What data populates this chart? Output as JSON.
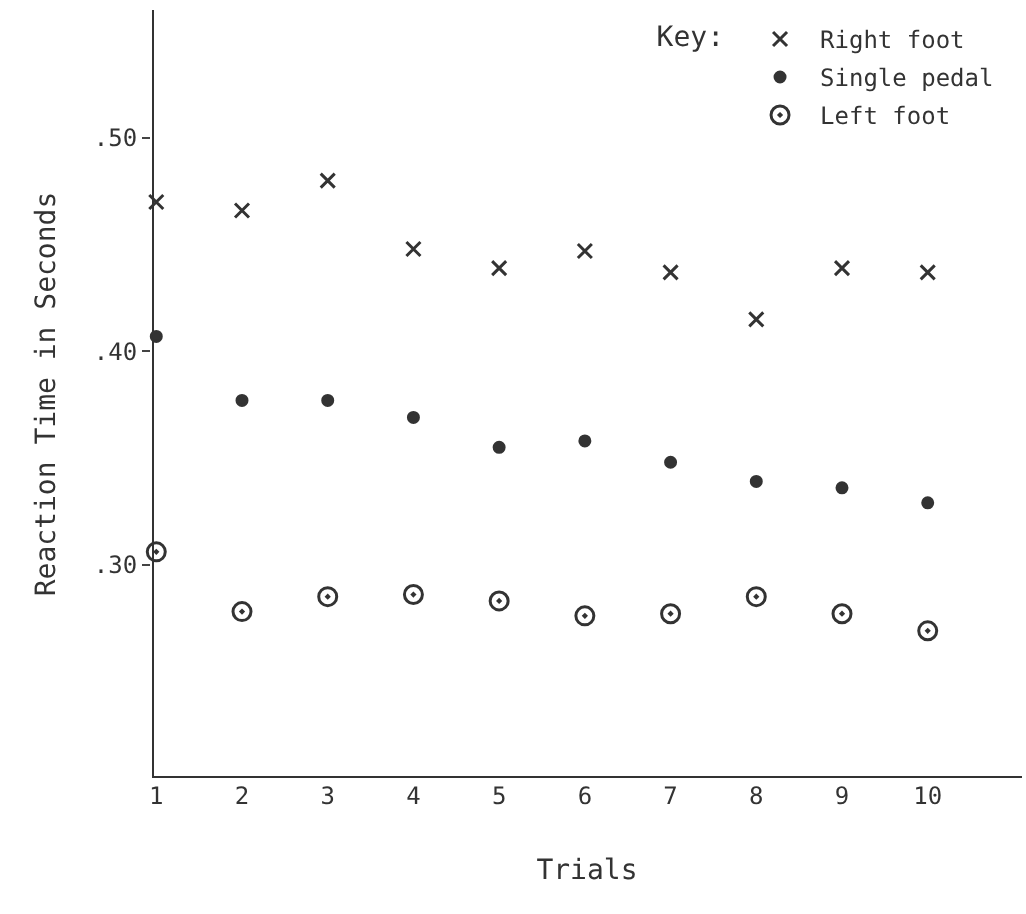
{
  "chart_data": {
    "type": "scatter",
    "xlabel": "Trials",
    "ylabel": "Reaction Time in Seconds",
    "legend_title": "Key:",
    "legend": "top right",
    "x": [
      1,
      2,
      3,
      4,
      5,
      6,
      7,
      8,
      9,
      10
    ],
    "xlim": [
      0.95,
      11.1
    ],
    "xticks": [
      1,
      2,
      3,
      4,
      5,
      6,
      7,
      8,
      9,
      10
    ],
    "ylim": [
      0.2,
      0.56
    ],
    "yticks": [
      {
        "value": 0.3,
        "label": ".30"
      },
      {
        "value": 0.4,
        "label": ".40"
      },
      {
        "value": 0.5,
        "label": ".50"
      }
    ],
    "series": [
      {
        "name": "Right foot",
        "color": "#333333",
        "marker": "cross",
        "values": [
          0.47,
          0.466,
          0.48,
          0.448,
          0.439,
          0.447,
          0.437,
          0.415,
          0.439,
          0.437
        ]
      },
      {
        "name": "Single pedal",
        "color": "#333333",
        "marker": "circle",
        "values": [
          0.407,
          0.377,
          0.377,
          0.369,
          0.355,
          0.358,
          0.348,
          0.339,
          0.336,
          0.329
        ]
      },
      {
        "name": "Left foot",
        "color": "#333333",
        "marker": "circle-dot",
        "values": [
          0.306,
          0.278,
          0.285,
          0.286,
          0.283,
          0.276,
          0.277,
          0.285,
          0.277,
          0.269
        ]
      }
    ]
  }
}
